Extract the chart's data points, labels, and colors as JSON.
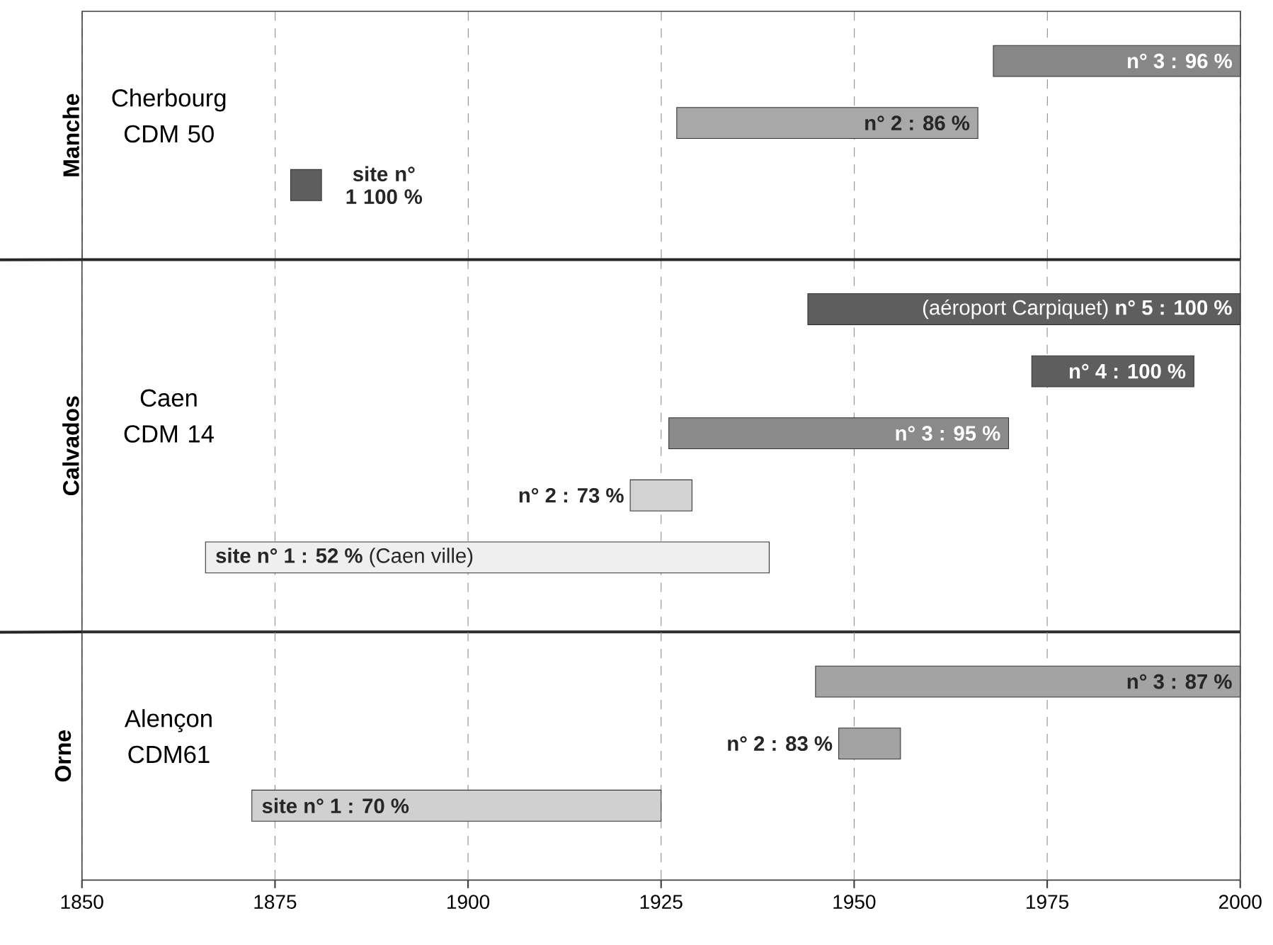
{
  "chart_data": [
    {
      "type": "bar",
      "orientation": "horizontal",
      "ylabel": "Manche",
      "categories": [
        null,
        null,
        null
      ],
      "base": [
        1968,
        1927,
        1877
      ],
      "values": [
        32,
        39,
        4
      ],
      "colors": [
        "#878787",
        "#a8a8a8",
        "#5e5e5e"
      ],
      "annotations": [
        "Cherbourg CDM 50",
        "n° 3 : 96 %",
        "n° 2 : 86 %",
        "site n° 1 100 %"
      ],
      "xlim": [
        1850,
        2000
      ],
      "xticks": [
        1850,
        1875,
        1900,
        1925,
        1950,
        1975,
        2000
      ],
      "grid": "x",
      "tick_labels": false
    },
    {
      "type": "bar",
      "orientation": "horizontal",
      "ylabel": "Calvados",
      "categories": [
        null,
        null,
        null,
        null,
        null
      ],
      "base": [
        1944,
        1973,
        1926,
        1921,
        1866
      ],
      "values": [
        56,
        21,
        44,
        8,
        73
      ],
      "colors": [
        "#5e5e5e",
        "#5e5e5e",
        "#8a8a8a",
        "#d2d2d2",
        "#efefef"
      ],
      "annotations": [
        "Caen CDM 14",
        "(aéroport  Carpiquet)   **n° 5 : 100 %**",
        "n° 4 : 100 %",
        "n° 3 : 95 %",
        "n° 2 : 73 %",
        "**site n° 1 : 52 %**    (Caen ville)"
      ],
      "xlim": [
        1850,
        2000
      ],
      "xticks": [
        1850,
        1875,
        1900,
        1925,
        1950,
        1975,
        2000
      ],
      "grid": "x",
      "tick_labels": false
    },
    {
      "type": "bar",
      "orientation": "horizontal",
      "ylabel": "Orne",
      "categories": [
        null,
        null,
        null
      ],
      "base": [
        1945,
        1948,
        1872
      ],
      "values": [
        55,
        8,
        53
      ],
      "colors": [
        "#a3a3a3",
        "#a3a3a3",
        "#d0d0d0"
      ],
      "annotations": [
        "Alençon CDM61",
        "n° 3 : 87 %",
        "n° 2 : 83 %",
        "site n° 1 : 70 %"
      ],
      "xlim": [
        1850,
        2000
      ],
      "xticks": [
        1850,
        1875,
        1900,
        1925,
        1950,
        1975,
        2000
      ],
      "grid": "x",
      "tick_labels": "x"
    }
  ]
}
